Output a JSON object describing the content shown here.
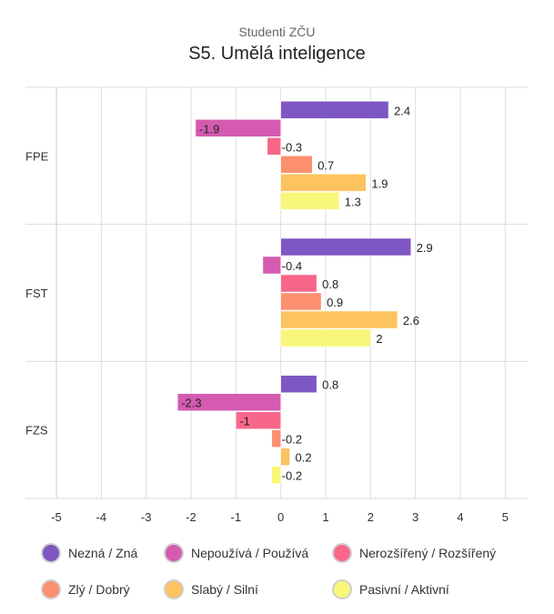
{
  "header": {
    "subtitle": "Studenti ZČU",
    "title": "S5. Umělá inteligence"
  },
  "chart_data": {
    "type": "bar",
    "orientation": "horizontal",
    "subtitle": "Studenti ZČU",
    "title": "S5. Umělá inteligence",
    "categories": [
      "FPE",
      "FST",
      "FZS"
    ],
    "xlim": [
      -5,
      5.5
    ],
    "xticks": [
      -5,
      -4,
      -3,
      -2,
      -1,
      0,
      1,
      2,
      3,
      4,
      5
    ],
    "grid": true,
    "legend_position": "bottom",
    "series": [
      {
        "name": "Nezná / Zná",
        "color": "#7e57c2",
        "values": [
          2.4,
          2.9,
          0.8
        ]
      },
      {
        "name": "Nepoužívá / Používá",
        "color": "#d45bb0",
        "values": [
          -1.9,
          -0.4,
          -2.3
        ]
      },
      {
        "name": "Nerozšířený / Rozšířený",
        "color": "#f8678a",
        "values": [
          -0.3,
          0.8,
          -1
        ]
      },
      {
        "name": "Zlý / Dobrý",
        "color": "#fb8f6f",
        "values": [
          0.7,
          0.9,
          -0.2
        ]
      },
      {
        "name": "Slabý / Silní",
        "color": "#fdc35e",
        "values": [
          1.9,
          2.6,
          0.2
        ]
      },
      {
        "name": "Pasivní / Aktivní",
        "color": "#f8f779",
        "values": [
          1.3,
          2,
          -0.2
        ]
      }
    ]
  }
}
